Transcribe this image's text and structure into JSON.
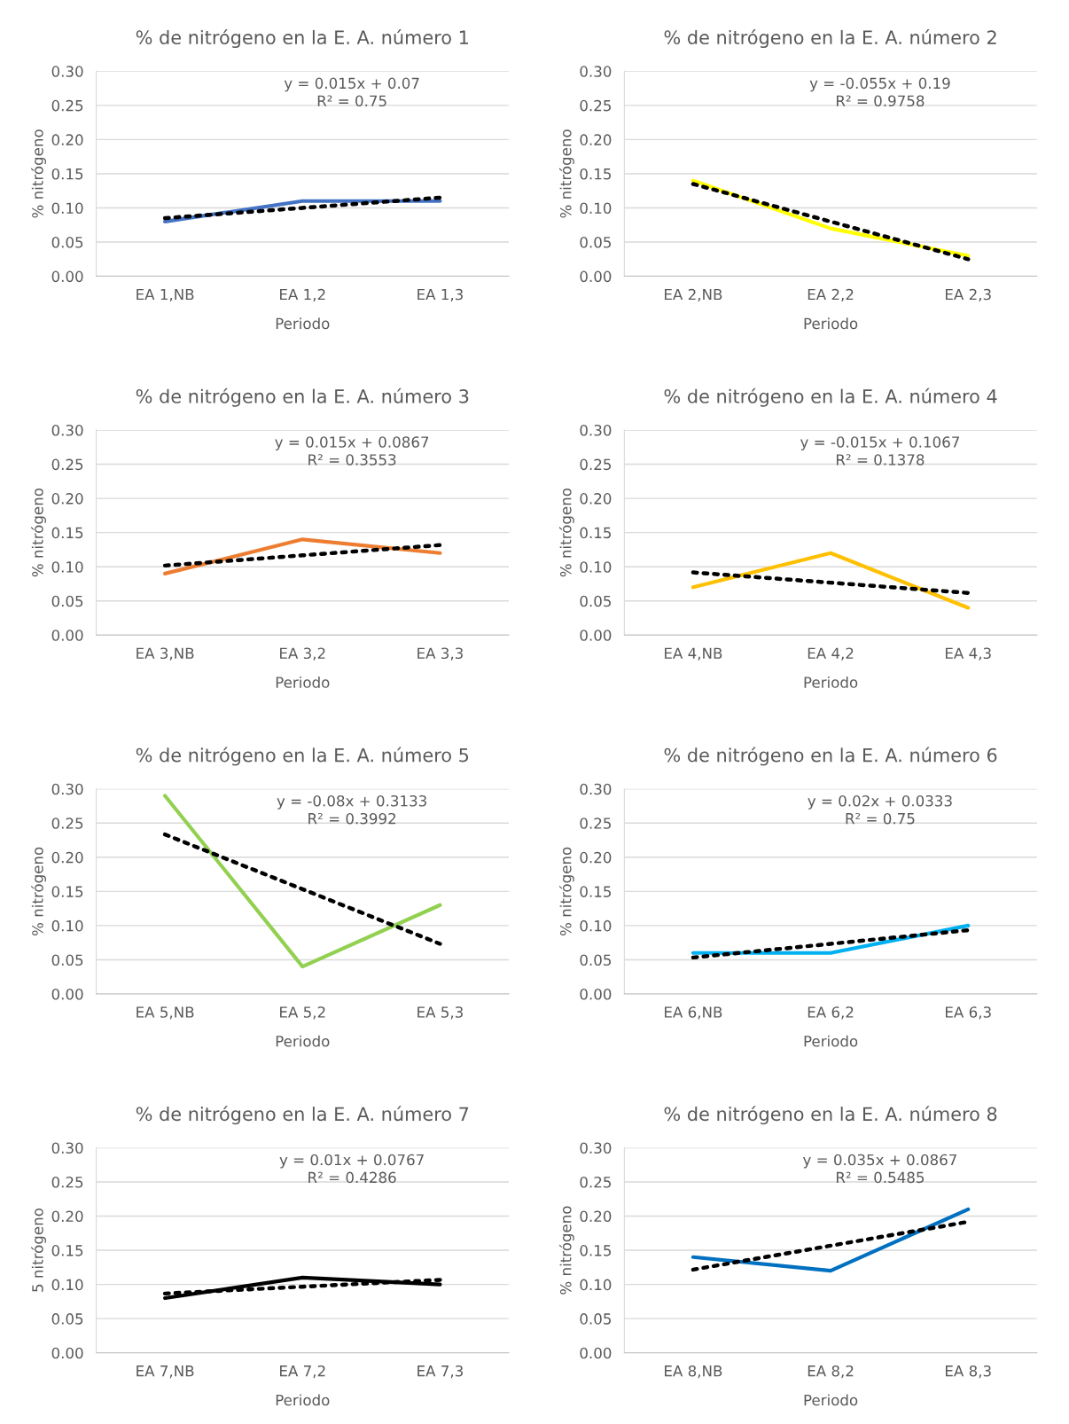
{
  "chart_data": [
    {
      "type": "line",
      "title": "% de nitrógeno en la E. A. número 1",
      "xlabel": "Periodo",
      "ylabel": "% nitrógeno",
      "categories": [
        "EA 1,NB",
        "EA 1,2",
        "EA 1,3"
      ],
      "series": [
        {
          "color": "#4472c4",
          "values": [
            0.08,
            0.11,
            0.11
          ]
        },
        {
          "color": "#000000",
          "values": [
            0.085,
            0.1,
            0.115
          ],
          "line_style": "dotted"
        }
      ],
      "ylim": [
        0,
        0.3
      ],
      "yticks": [
        {
          "value": 0,
          "label": "0.00"
        },
        {
          "value": 0.05,
          "label": "0.05"
        },
        {
          "value": 0.1,
          "label": "0.10"
        },
        {
          "value": 0.15,
          "label": "0.15"
        },
        {
          "value": 0.2,
          "label": "0.20"
        },
        {
          "value": 0.25,
          "label": "0.25"
        },
        {
          "value": 0.3,
          "label": "0.30"
        }
      ],
      "grid": "y",
      "legend": false,
      "marker": "none",
      "annotations": [
        "y = 0.015x + 0.07\nR² = 0.75"
      ]
    },
    {
      "type": "line",
      "title": "% de nitrógeno en la E. A. número 2",
      "xlabel": "Periodo",
      "ylabel": "% nitrógeno",
      "categories": [
        "EA 2,NB",
        "EA 2,2",
        "EA 2,3"
      ],
      "series": [
        {
          "color": "#ffff00",
          "values": [
            0.14,
            0.07,
            0.03
          ]
        },
        {
          "color": "#000000",
          "values": [
            0.135,
            0.08,
            0.025
          ],
          "line_style": "dotted"
        }
      ],
      "ylim": [
        0,
        0.3
      ],
      "yticks": [
        {
          "value": 0,
          "label": "0.00"
        },
        {
          "value": 0.05,
          "label": "0.05"
        },
        {
          "value": 0.1,
          "label": "0.10"
        },
        {
          "value": 0.15,
          "label": "0.15"
        },
        {
          "value": 0.2,
          "label": "0.20"
        },
        {
          "value": 0.25,
          "label": "0.25"
        },
        {
          "value": 0.3,
          "label": "0.30"
        }
      ],
      "grid": "y",
      "legend": false,
      "marker": "none",
      "annotations": [
        "y = -0.055x + 0.19\nR² = 0.9758"
      ]
    },
    {
      "type": "line",
      "title": "% de nitrógeno en la E. A. número 3",
      "xlabel": "Periodo",
      "ylabel": "% nitrógeno",
      "categories": [
        "EA 3,NB",
        "EA 3,2",
        "EA 3,3"
      ],
      "series": [
        {
          "color": "#ed7d31",
          "values": [
            0.09,
            0.14,
            0.12
          ]
        },
        {
          "color": "#000000",
          "values": [
            0.1017,
            0.1167,
            0.1317
          ],
          "line_style": "dotted"
        }
      ],
      "ylim": [
        0,
        0.3
      ],
      "yticks": [
        {
          "value": 0,
          "label": "0.00"
        },
        {
          "value": 0.05,
          "label": "0.05"
        },
        {
          "value": 0.1,
          "label": "0.10"
        },
        {
          "value": 0.15,
          "label": "0.15"
        },
        {
          "value": 0.2,
          "label": "0.20"
        },
        {
          "value": 0.25,
          "label": "0.25"
        },
        {
          "value": 0.3,
          "label": "0.30"
        }
      ],
      "grid": "y",
      "legend": false,
      "marker": "none",
      "annotations": [
        "y = 0.015x + 0.0867\nR² = 0.3553"
      ]
    },
    {
      "type": "line",
      "title": "% de nitrógeno en la E. A. número 4",
      "xlabel": "Periodo",
      "ylabel": "% nitrógeno",
      "categories": [
        "EA 4,NB",
        "EA 4,2",
        "EA 4,3"
      ],
      "series": [
        {
          "color": "#ffc000",
          "values": [
            0.07,
            0.12,
            0.04
          ]
        },
        {
          "color": "#000000",
          "values": [
            0.0917,
            0.0767,
            0.0617
          ],
          "line_style": "dotted"
        }
      ],
      "ylim": [
        0,
        0.3
      ],
      "yticks": [
        {
          "value": 0,
          "label": "0.00"
        },
        {
          "value": 0.05,
          "label": "0.05"
        },
        {
          "value": 0.1,
          "label": "0.10"
        },
        {
          "value": 0.15,
          "label": "0.15"
        },
        {
          "value": 0.2,
          "label": "0.20"
        },
        {
          "value": 0.25,
          "label": "0.25"
        },
        {
          "value": 0.3,
          "label": "0.30"
        }
      ],
      "grid": "y",
      "legend": false,
      "marker": "none",
      "annotations": [
        "y = -0.015x + 0.1067\nR² = 0.1378"
      ]
    },
    {
      "type": "line",
      "title": "% de nitrógeno en la E. A. número 5",
      "xlabel": "Periodo",
      "ylabel": "% nitrógeno",
      "categories": [
        "EA 5,NB",
        "EA 5,2",
        "EA 5,3"
      ],
      "series": [
        {
          "color": "#92d050",
          "values": [
            0.29,
            0.04,
            0.13
          ]
        },
        {
          "color": "#000000",
          "values": [
            0.2333,
            0.1533,
            0.0733
          ],
          "line_style": "dotted"
        }
      ],
      "ylim": [
        0,
        0.3
      ],
      "yticks": [
        {
          "value": 0,
          "label": "0.00"
        },
        {
          "value": 0.05,
          "label": "0.05"
        },
        {
          "value": 0.1,
          "label": "0.10"
        },
        {
          "value": 0.15,
          "label": "0.15"
        },
        {
          "value": 0.2,
          "label": "0.20"
        },
        {
          "value": 0.25,
          "label": "0.25"
        },
        {
          "value": 0.3,
          "label": "0.30"
        }
      ],
      "grid": "y",
      "legend": false,
      "marker": "none",
      "annotations": [
        "y = -0.08x + 0.3133\nR² = 0.3992"
      ]
    },
    {
      "type": "line",
      "title": "% de nitrógeno en la E. A. número 6",
      "xlabel": "Periodo",
      "ylabel": "% nitrógeno",
      "categories": [
        "EA 6,NB",
        "EA 6,2",
        "EA 6,3"
      ],
      "series": [
        {
          "color": "#00b0f0",
          "values": [
            0.06,
            0.06,
            0.1
          ]
        },
        {
          "color": "#000000",
          "values": [
            0.0533,
            0.0733,
            0.0933
          ],
          "line_style": "dotted"
        }
      ],
      "ylim": [
        0,
        0.3
      ],
      "yticks": [
        {
          "value": 0,
          "label": "0.00"
        },
        {
          "value": 0.05,
          "label": "0.05"
        },
        {
          "value": 0.1,
          "label": "0.10"
        },
        {
          "value": 0.15,
          "label": "0.15"
        },
        {
          "value": 0.2,
          "label": "0.20"
        },
        {
          "value": 0.25,
          "label": "0.25"
        },
        {
          "value": 0.3,
          "label": "0.30"
        }
      ],
      "grid": "y",
      "legend": false,
      "marker": "none",
      "annotations": [
        "y = 0.02x + 0.0333\nR² = 0.75"
      ]
    },
    {
      "type": "line",
      "title": "% de nitrógeno en la E. A. número 7",
      "xlabel": "Periodo",
      "ylabel": "5 nitrógeno",
      "categories": [
        "EA 7,NB",
        "EA 7,2",
        "EA 7,3"
      ],
      "series": [
        {
          "color": "#000000",
          "values": [
            0.08,
            0.11,
            0.1
          ]
        },
        {
          "color": "#000000",
          "values": [
            0.0867,
            0.0967,
            0.1067
          ],
          "line_style": "dotted"
        }
      ],
      "ylim": [
        0,
        0.3
      ],
      "yticks": [
        {
          "value": 0,
          "label": "0.00"
        },
        {
          "value": 0.05,
          "label": "0.05"
        },
        {
          "value": 0.1,
          "label": "0.10"
        },
        {
          "value": 0.15,
          "label": "0.15"
        },
        {
          "value": 0.2,
          "label": "0.20"
        },
        {
          "value": 0.25,
          "label": "0.25"
        },
        {
          "value": 0.3,
          "label": "0.30"
        }
      ],
      "grid": "y",
      "legend": false,
      "marker": "none",
      "annotations": [
        "y = 0.01x + 0.0767\nR² = 0.4286"
      ]
    },
    {
      "type": "line",
      "title": "% de nitrógeno en la E. A. número 8",
      "xlabel": "Periodo",
      "ylabel": "% nitrógeno",
      "categories": [
        "EA 8,NB",
        "EA 8,2",
        "EA 8,3"
      ],
      "series": [
        {
          "color": "#0070c0",
          "values": [
            0.14,
            0.12,
            0.21
          ]
        },
        {
          "color": "#000000",
          "values": [
            0.1217,
            0.1567,
            0.1917
          ],
          "line_style": "dotted"
        }
      ],
      "ylim": [
        0,
        0.3
      ],
      "yticks": [
        {
          "value": 0,
          "label": "0.00"
        },
        {
          "value": 0.05,
          "label": "0.05"
        },
        {
          "value": 0.1,
          "label": "0.10"
        },
        {
          "value": 0.15,
          "label": "0.15"
        },
        {
          "value": 0.2,
          "label": "0.20"
        },
        {
          "value": 0.25,
          "label": "0.25"
        },
        {
          "value": 0.3,
          "label": "0.30"
        }
      ],
      "grid": "y",
      "legend": false,
      "marker": "none",
      "annotations": [
        "y = 0.035x + 0.0867\nR² = 0.5485"
      ]
    }
  ]
}
